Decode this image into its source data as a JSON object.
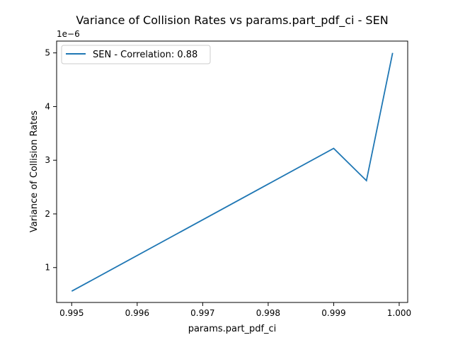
{
  "chart_data": {
    "type": "line",
    "title": "Variance of Collision Rates vs params.part_pdf_ci - SEN",
    "xlabel": "params.part_pdf_ci",
    "ylabel": "Variance of Collision Rates",
    "y_offset_label": "1e−6",
    "x_ticks": [
      "0.995",
      "0.996",
      "0.997",
      "0.998",
      "0.999",
      "1.000"
    ],
    "y_ticks": [
      "1",
      "2",
      "3",
      "4",
      "5"
    ],
    "xlim": [
      0.99477,
      1.00013
    ],
    "ylim": [
      0.35,
      5.22
    ],
    "grid": false,
    "legend_position": "upper-left",
    "series": [
      {
        "name": "SEN - Correlation: 0.88",
        "color": "#1f77b4",
        "x": [
          0.995,
          0.999,
          0.9995,
          0.9999
        ],
        "y": [
          0.56,
          3.22,
          2.62,
          5.0
        ]
      }
    ]
  }
}
